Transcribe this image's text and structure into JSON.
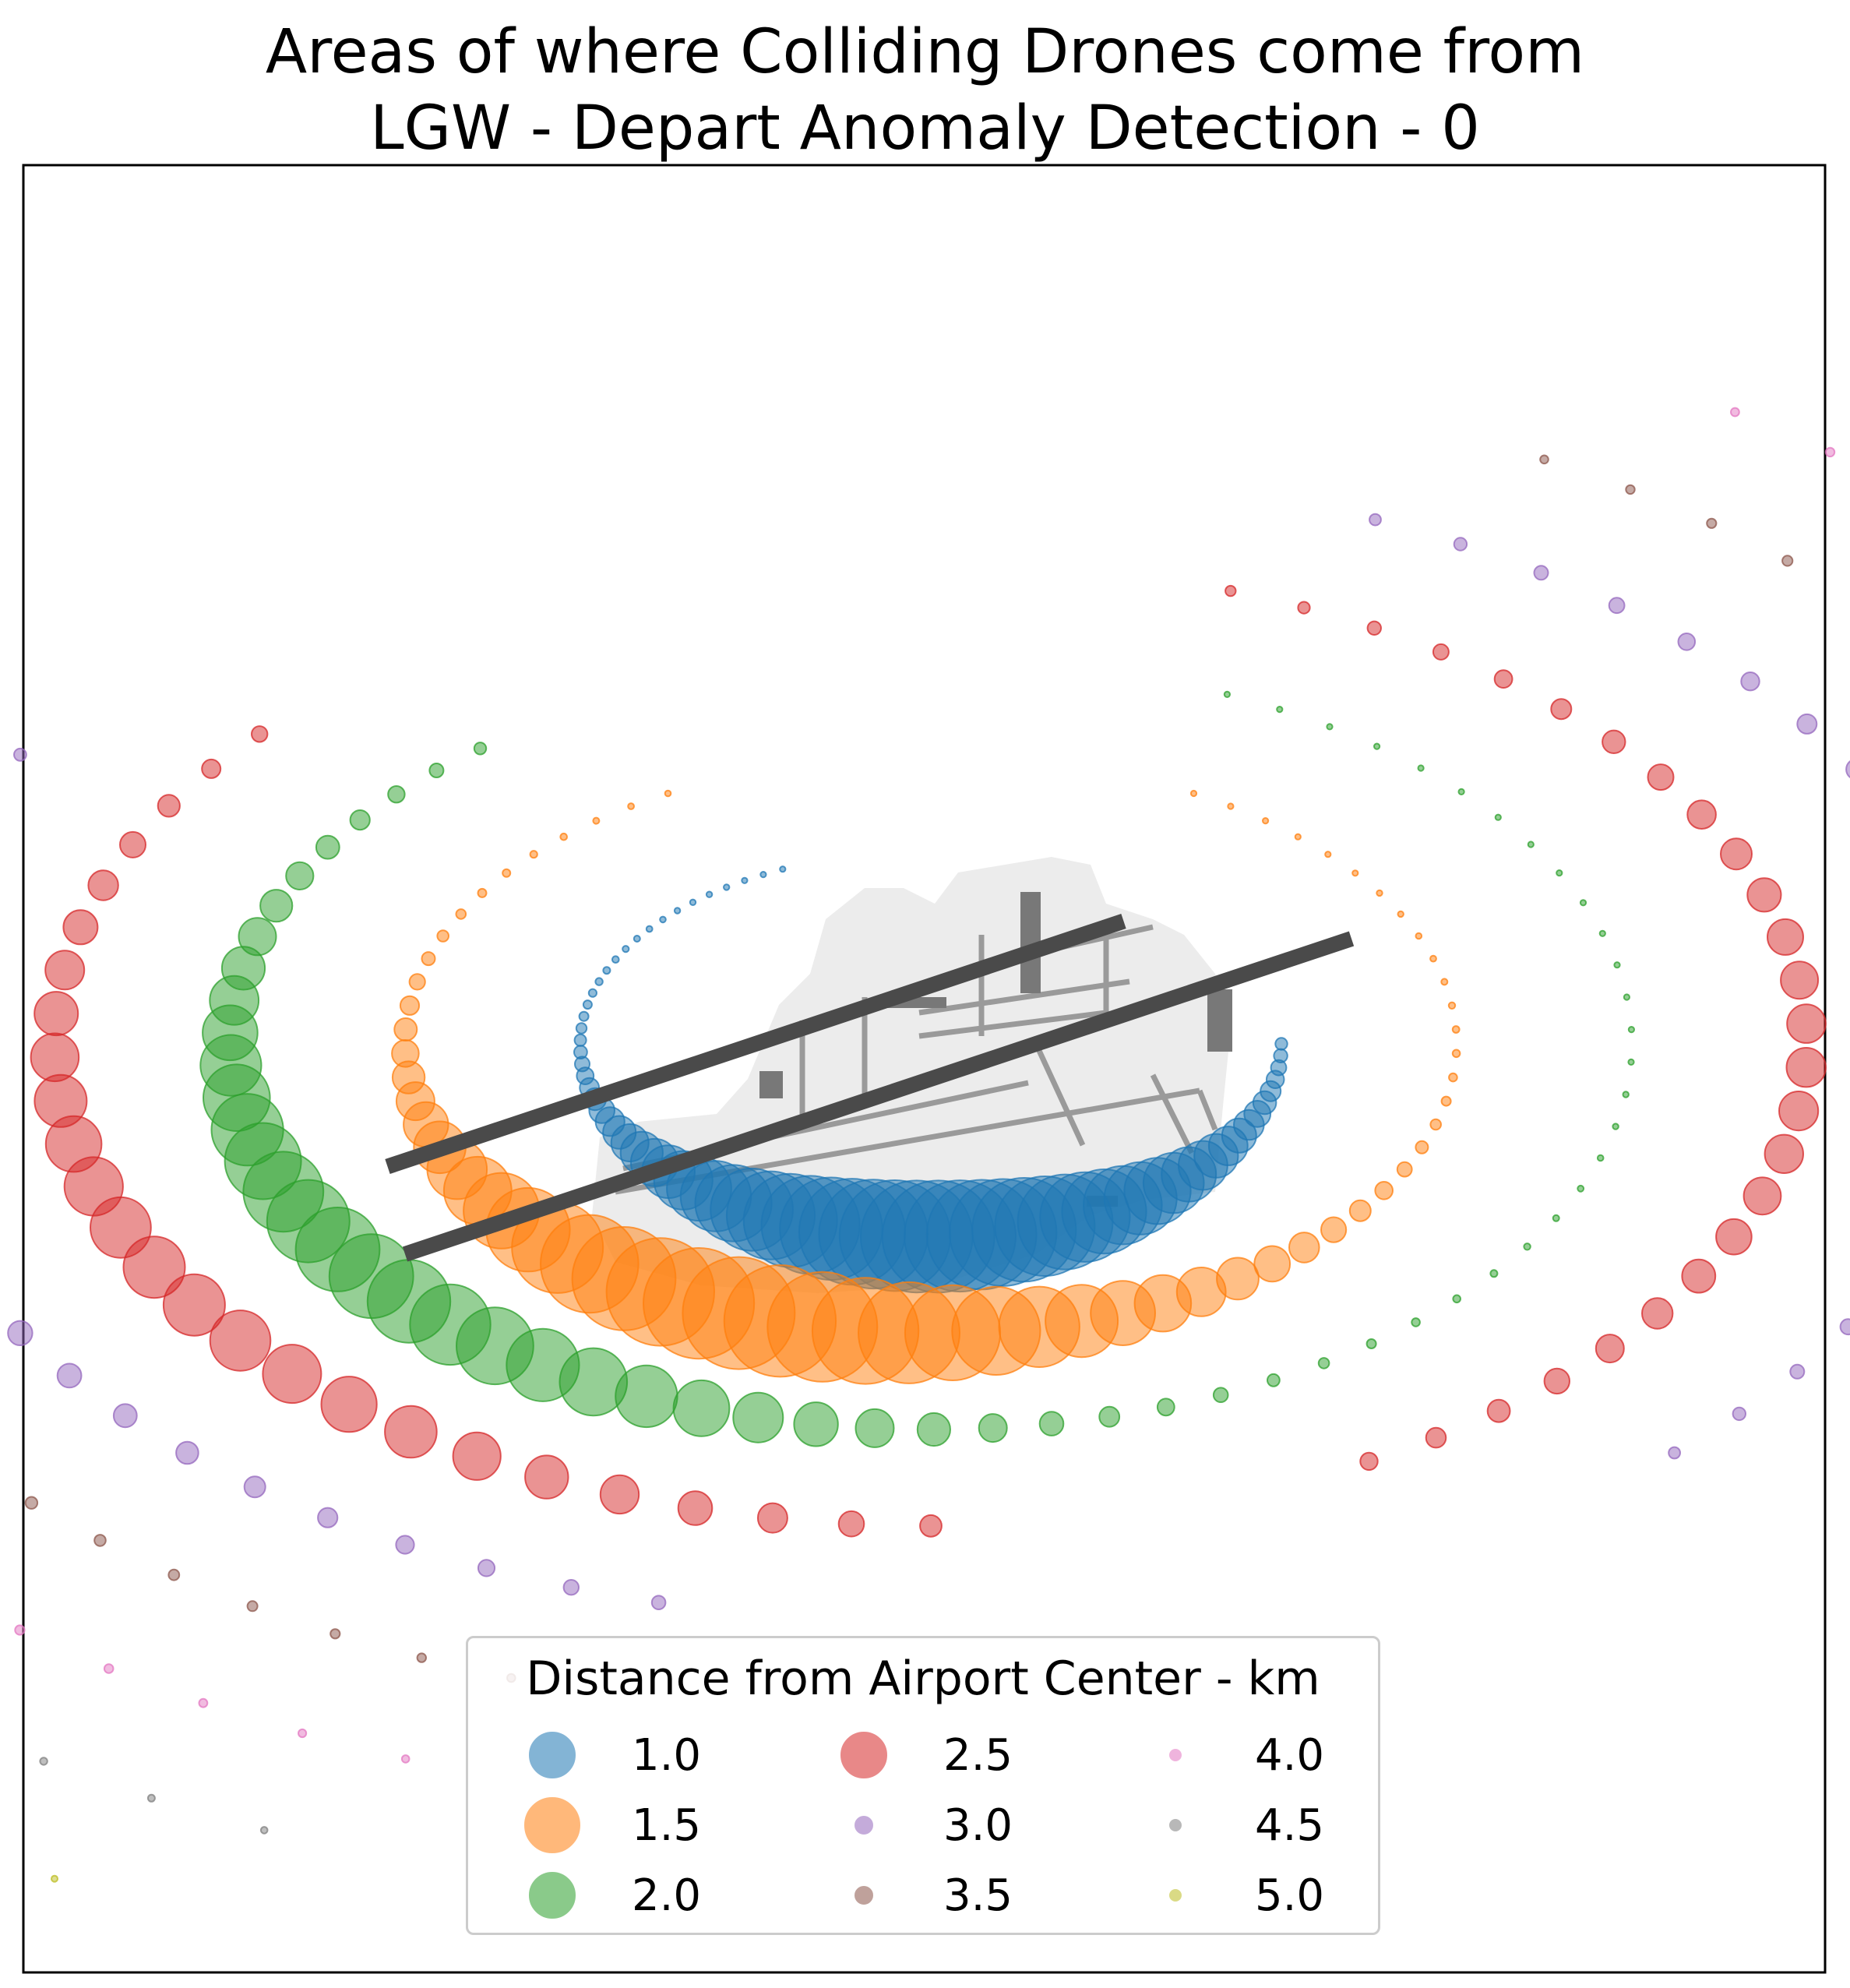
{
  "title_lines": [
    "Areas of where Colliding Drones come from",
    "LGW - Depart Anomaly Detection - 0"
  ],
  "colors": {
    "tab_blue": "#1f77b4",
    "tab_orange": "#ff7f0e",
    "tab_green": "#2ca02c",
    "tab_red": "#d62728",
    "tab_purple": "#9467bd",
    "tab_brown": "#8c564b",
    "tab_pink": "#e377c2",
    "tab_gray": "#7f7f7f",
    "tab_olive": "#bcbd22",
    "runway": "#4a4a4a",
    "airport_area": "#ececec",
    "taxiway": "#9a9a9a",
    "building": "#787878"
  },
  "chart_data": {
    "type": "scatter",
    "title": "Areas of where Colliding Drones come from\nLGW - Depart Anomaly Detection - 0",
    "xlabel": "",
    "ylabel": "",
    "axes_visible": false,
    "grid": false,
    "legend": {
      "title": "Distance from Airport Center - km",
      "placement": "lower center",
      "columns": 3
    },
    "center": [
      0,
      0
    ],
    "rings": [
      {
        "name": "1.0",
        "radius_km": 1.0,
        "color": "#1f77b4",
        "arc_start_deg": 115,
        "arc_end_deg": 360,
        "points": 70,
        "peak_angle_deg": 270,
        "peak_size": 1.0,
        "min_size": 0.05
      },
      {
        "name": "1.5",
        "radius_km": 1.5,
        "color": "#ff7f0e",
        "arc_start_deg": 120,
        "arc_end_deg": 420,
        "points": 64,
        "peak_angle_deg": 250,
        "peak_size": 1.0,
        "min_size": 0.05
      },
      {
        "name": "2.0",
        "radius_km": 2.0,
        "color": "#2ca02c",
        "arc_start_deg": 130,
        "arc_end_deg": 425,
        "points": 62,
        "peak_angle_deg": 215,
        "peak_size": 0.75,
        "min_size": 0.05
      },
      {
        "name": "2.5",
        "radius_km": 2.5,
        "color": "#d62728",
        "arc_start_deg": 140,
        "arc_end_deg": 270,
        "points": 26,
        "peak_angle_deg": 210,
        "peak_size": 0.55,
        "min_size": 0.05
      },
      {
        "name": "2.5",
        "radius_km": 2.5,
        "color": "#d62728",
        "arc_start_deg": 300,
        "arc_end_deg": 430,
        "points": 26,
        "peak_angle_deg": 355,
        "peak_size": 0.35,
        "min_size": 0.05
      },
      {
        "name": "3.0",
        "radius_km": 3.0,
        "color": "#9467bd",
        "arc_start_deg": 150,
        "arc_end_deg": 255,
        "points": 22,
        "peak_angle_deg": 205,
        "peak_size": 0.22,
        "min_size": 0.05
      },
      {
        "name": "3.0",
        "radius_km": 3.0,
        "color": "#9467bd",
        "arc_start_deg": 315,
        "arc_end_deg": 425,
        "points": 22,
        "peak_angle_deg": 370,
        "peak_size": 0.2,
        "min_size": 0.05
      },
      {
        "name": "3.5",
        "radius_km": 3.5,
        "color": "#8c564b",
        "arc_start_deg": 155,
        "arc_end_deg": 250,
        "points": 22,
        "peak_angle_deg": 200,
        "peak_size": 0.12,
        "min_size": 0.04
      },
      {
        "name": "3.5",
        "radius_km": 3.5,
        "color": "#8c564b",
        "arc_start_deg": 320,
        "arc_end_deg": 420,
        "points": 22,
        "peak_angle_deg": 370,
        "peak_size": 0.12,
        "min_size": 0.04
      },
      {
        "name": "4.0",
        "radius_km": 4.0,
        "color": "#e377c2",
        "arc_start_deg": 160,
        "arc_end_deg": 248,
        "points": 20,
        "peak_angle_deg": 200,
        "peak_size": 0.1,
        "min_size": 0.04
      },
      {
        "name": "4.0",
        "radius_km": 4.0,
        "color": "#e377c2",
        "arc_start_deg": 322,
        "arc_end_deg": 415,
        "points": 20,
        "peak_angle_deg": 375,
        "peak_size": 0.1,
        "min_size": 0.04
      },
      {
        "name": "4.5",
        "radius_km": 4.5,
        "color": "#7f7f7f",
        "arc_start_deg": 162,
        "arc_end_deg": 245,
        "points": 19,
        "peak_angle_deg": 200,
        "peak_size": 0.08,
        "min_size": 0.04
      },
      {
        "name": "4.5",
        "radius_km": 4.5,
        "color": "#7f7f7f",
        "arc_start_deg": 325,
        "arc_end_deg": 412,
        "points": 19,
        "peak_angle_deg": 370,
        "peak_size": 0.08,
        "min_size": 0.04
      },
      {
        "name": "5.0",
        "radius_km": 5.0,
        "color": "#bcbd22",
        "arc_start_deg": 165,
        "arc_end_deg": 240,
        "points": 16,
        "peak_angle_deg": 195,
        "peak_size": 0.07,
        "min_size": 0.04
      },
      {
        "name": "5.0",
        "radius_km": 5.0,
        "color": "#bcbd22",
        "arc_start_deg": 328,
        "arc_end_deg": 410,
        "points": 16,
        "peak_angle_deg": 375,
        "peak_size": 0.07,
        "min_size": 0.04
      }
    ],
    "legend_entries": [
      {
        "label": "1.0",
        "color": "#1f77b4",
        "size": "large"
      },
      {
        "label": "1.5",
        "color": "#ff7f0e",
        "size": "largest"
      },
      {
        "label": "2.0",
        "color": "#2ca02c",
        "size": "large"
      },
      {
        "label": "2.5",
        "color": "#d62728",
        "size": "large"
      },
      {
        "label": "3.0",
        "color": "#9467bd",
        "size": "small"
      },
      {
        "label": "3.5",
        "color": "#8c564b",
        "size": "small"
      },
      {
        "label": "4.0",
        "color": "#e377c2",
        "size": "tiny"
      },
      {
        "label": "4.5",
        "color": "#7f7f7f",
        "size": "tiny"
      },
      {
        "label": "5.0",
        "color": "#bcbd22",
        "size": "tiny"
      }
    ],
    "runways": [
      {
        "name": "runway-north",
        "x1_km": -1.55,
        "y1_km": -0.35,
        "x2_km": 0.55,
        "y2_km": 0.35
      },
      {
        "name": "runway-south",
        "x1_km": -1.5,
        "y1_km": -0.6,
        "x2_km": 1.2,
        "y2_km": 0.3
      }
    ]
  }
}
